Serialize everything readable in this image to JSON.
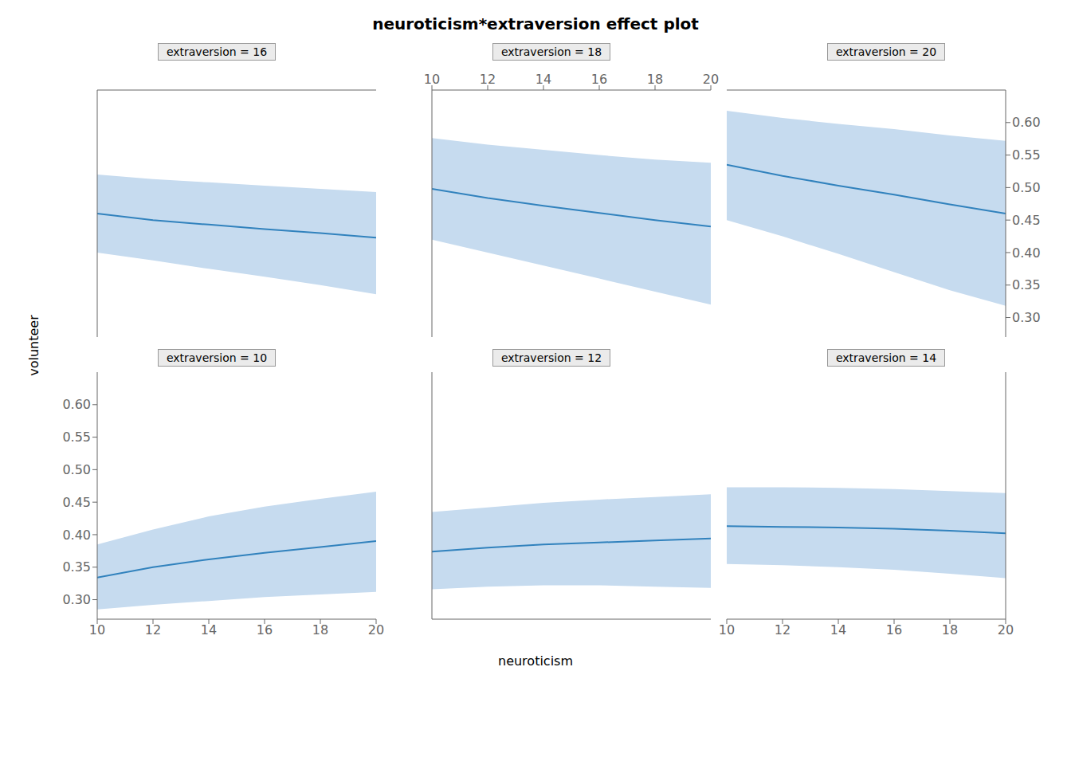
{
  "chart_data": {
    "type": "line",
    "title": "neuroticism*extraversion effect plot",
    "xlabel": "neuroticism",
    "ylabel": "volunteer",
    "x": [
      10,
      12,
      14,
      16,
      18,
      20
    ],
    "xlim": [
      10,
      20
    ],
    "xticks": [
      10,
      12,
      14,
      16,
      18,
      20
    ],
    "ylim": [
      0.27,
      0.65
    ],
    "yticks": [
      {
        "value": 0.3,
        "label": "0.30"
      },
      0.35,
      {
        "value": 0.4,
        "label": "0.40"
      },
      0.45,
      {
        "value": 0.5,
        "label": "0.50"
      },
      0.55,
      {
        "value": 0.6,
        "label": "0.60"
      }
    ],
    "grid": false,
    "panels": [
      {
        "title": "extraversion = 16",
        "tick_labels": false,
        "values": [
          0.46,
          0.45,
          0.443,
          0.436,
          0.43,
          0.423
        ],
        "lower": [
          0.4,
          0.388,
          0.375,
          0.363,
          0.35,
          0.336
        ],
        "upper": [
          0.52,
          0.513,
          0.508,
          0.503,
          0.498,
          0.493
        ]
      },
      {
        "title": "extraversion = 18",
        "tick_labels": "x",
        "values": [
          0.498,
          0.484,
          0.472,
          0.461,
          0.45,
          0.44
        ],
        "lower": [
          0.42,
          0.4,
          0.38,
          0.36,
          0.34,
          0.32
        ],
        "upper": [
          0.576,
          0.566,
          0.558,
          0.55,
          0.543,
          0.538
        ]
      },
      {
        "title": "extraversion = 20",
        "tick_labels": "y",
        "values": [
          0.535,
          0.518,
          0.503,
          0.489,
          0.474,
          0.46
        ],
        "lower": [
          0.45,
          0.425,
          0.398,
          0.37,
          0.342,
          0.318
        ],
        "upper": [
          0.618,
          0.607,
          0.598,
          0.59,
          0.58,
          0.572
        ]
      },
      {
        "title": "extraversion = 10",
        "tick_labels": true,
        "values": [
          0.334,
          0.35,
          0.362,
          0.372,
          0.381,
          0.39
        ],
        "lower": [
          0.285,
          0.292,
          0.298,
          0.304,
          0.308,
          0.312
        ],
        "upper": [
          0.385,
          0.408,
          0.428,
          0.443,
          0.455,
          0.466
        ]
      },
      {
        "title": "extraversion = 12",
        "tick_labels": false,
        "values": [
          0.374,
          0.38,
          0.385,
          0.388,
          0.391,
          0.394
        ],
        "lower": [
          0.316,
          0.32,
          0.322,
          0.322,
          0.32,
          0.318
        ],
        "upper": [
          0.435,
          0.442,
          0.449,
          0.454,
          0.458,
          0.462
        ]
      },
      {
        "title": "extraversion = 14",
        "tick_labels": "x",
        "values": [
          0.413,
          0.412,
          0.411,
          0.409,
          0.406,
          0.402
        ],
        "lower": [
          0.355,
          0.353,
          0.35,
          0.346,
          0.34,
          0.333
        ],
        "upper": [
          0.473,
          0.473,
          0.472,
          0.47,
          0.467,
          0.464
        ]
      }
    ]
  }
}
